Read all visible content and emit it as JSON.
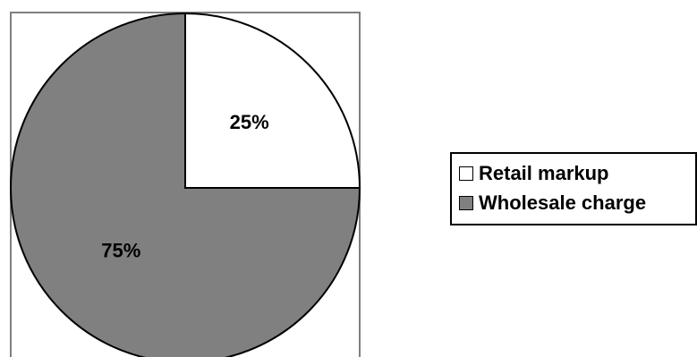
{
  "chart_data": {
    "type": "pie",
    "slices": [
      {
        "label": "Retail markup",
        "value": 25,
        "data_label": "25%",
        "color": "#ffffff"
      },
      {
        "label": "Wholesale charge",
        "value": 75,
        "data_label": "75%",
        "color": "#808080"
      }
    ],
    "start_angle_deg": 0,
    "direction": "clockwise",
    "legend_position": "right"
  }
}
